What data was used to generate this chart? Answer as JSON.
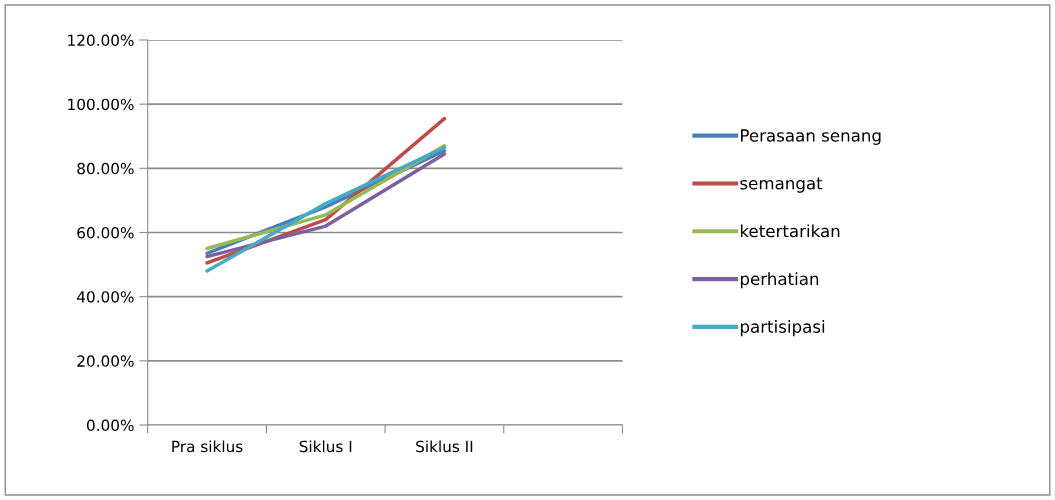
{
  "chart_data": {
    "type": "line",
    "categories": [
      "Pra siklus",
      "Siklus I",
      "Siklus II",
      null
    ],
    "ylim": [
      0,
      120
    ],
    "yticks": [
      {
        "value": 0,
        "label": "0.00%"
      },
      {
        "value": 20,
        "label": "20.00%"
      },
      {
        "value": 40,
        "label": "40.00%"
      },
      {
        "value": 60,
        "label": "60.00%"
      },
      {
        "value": 80,
        "label": "80.00%"
      },
      {
        "value": 100,
        "label": "100.00%"
      },
      {
        "value": 120,
        "label": "120.00%"
      }
    ],
    "grid": "y",
    "legend": "right",
    "marker": "none",
    "series": [
      {
        "name": "Perasaan senang",
        "color": "#4a7ebb",
        "values": [
          53.5,
          68,
          85.5,
          null
        ]
      },
      {
        "name": "semangat",
        "color": "#be4b48",
        "values": [
          50.5,
          64,
          95.5,
          null
        ]
      },
      {
        "name": "ketertarikan",
        "color": "#98b954",
        "values": [
          55,
          65.5,
          87,
          null
        ]
      },
      {
        "name": "perhatian",
        "color": "#7d60a0",
        "values": [
          52.5,
          62,
          84.5,
          null
        ]
      },
      {
        "name": "partisipasi",
        "color": "#46aac5",
        "values": [
          48,
          69,
          86.5,
          null
        ]
      }
    ]
  }
}
